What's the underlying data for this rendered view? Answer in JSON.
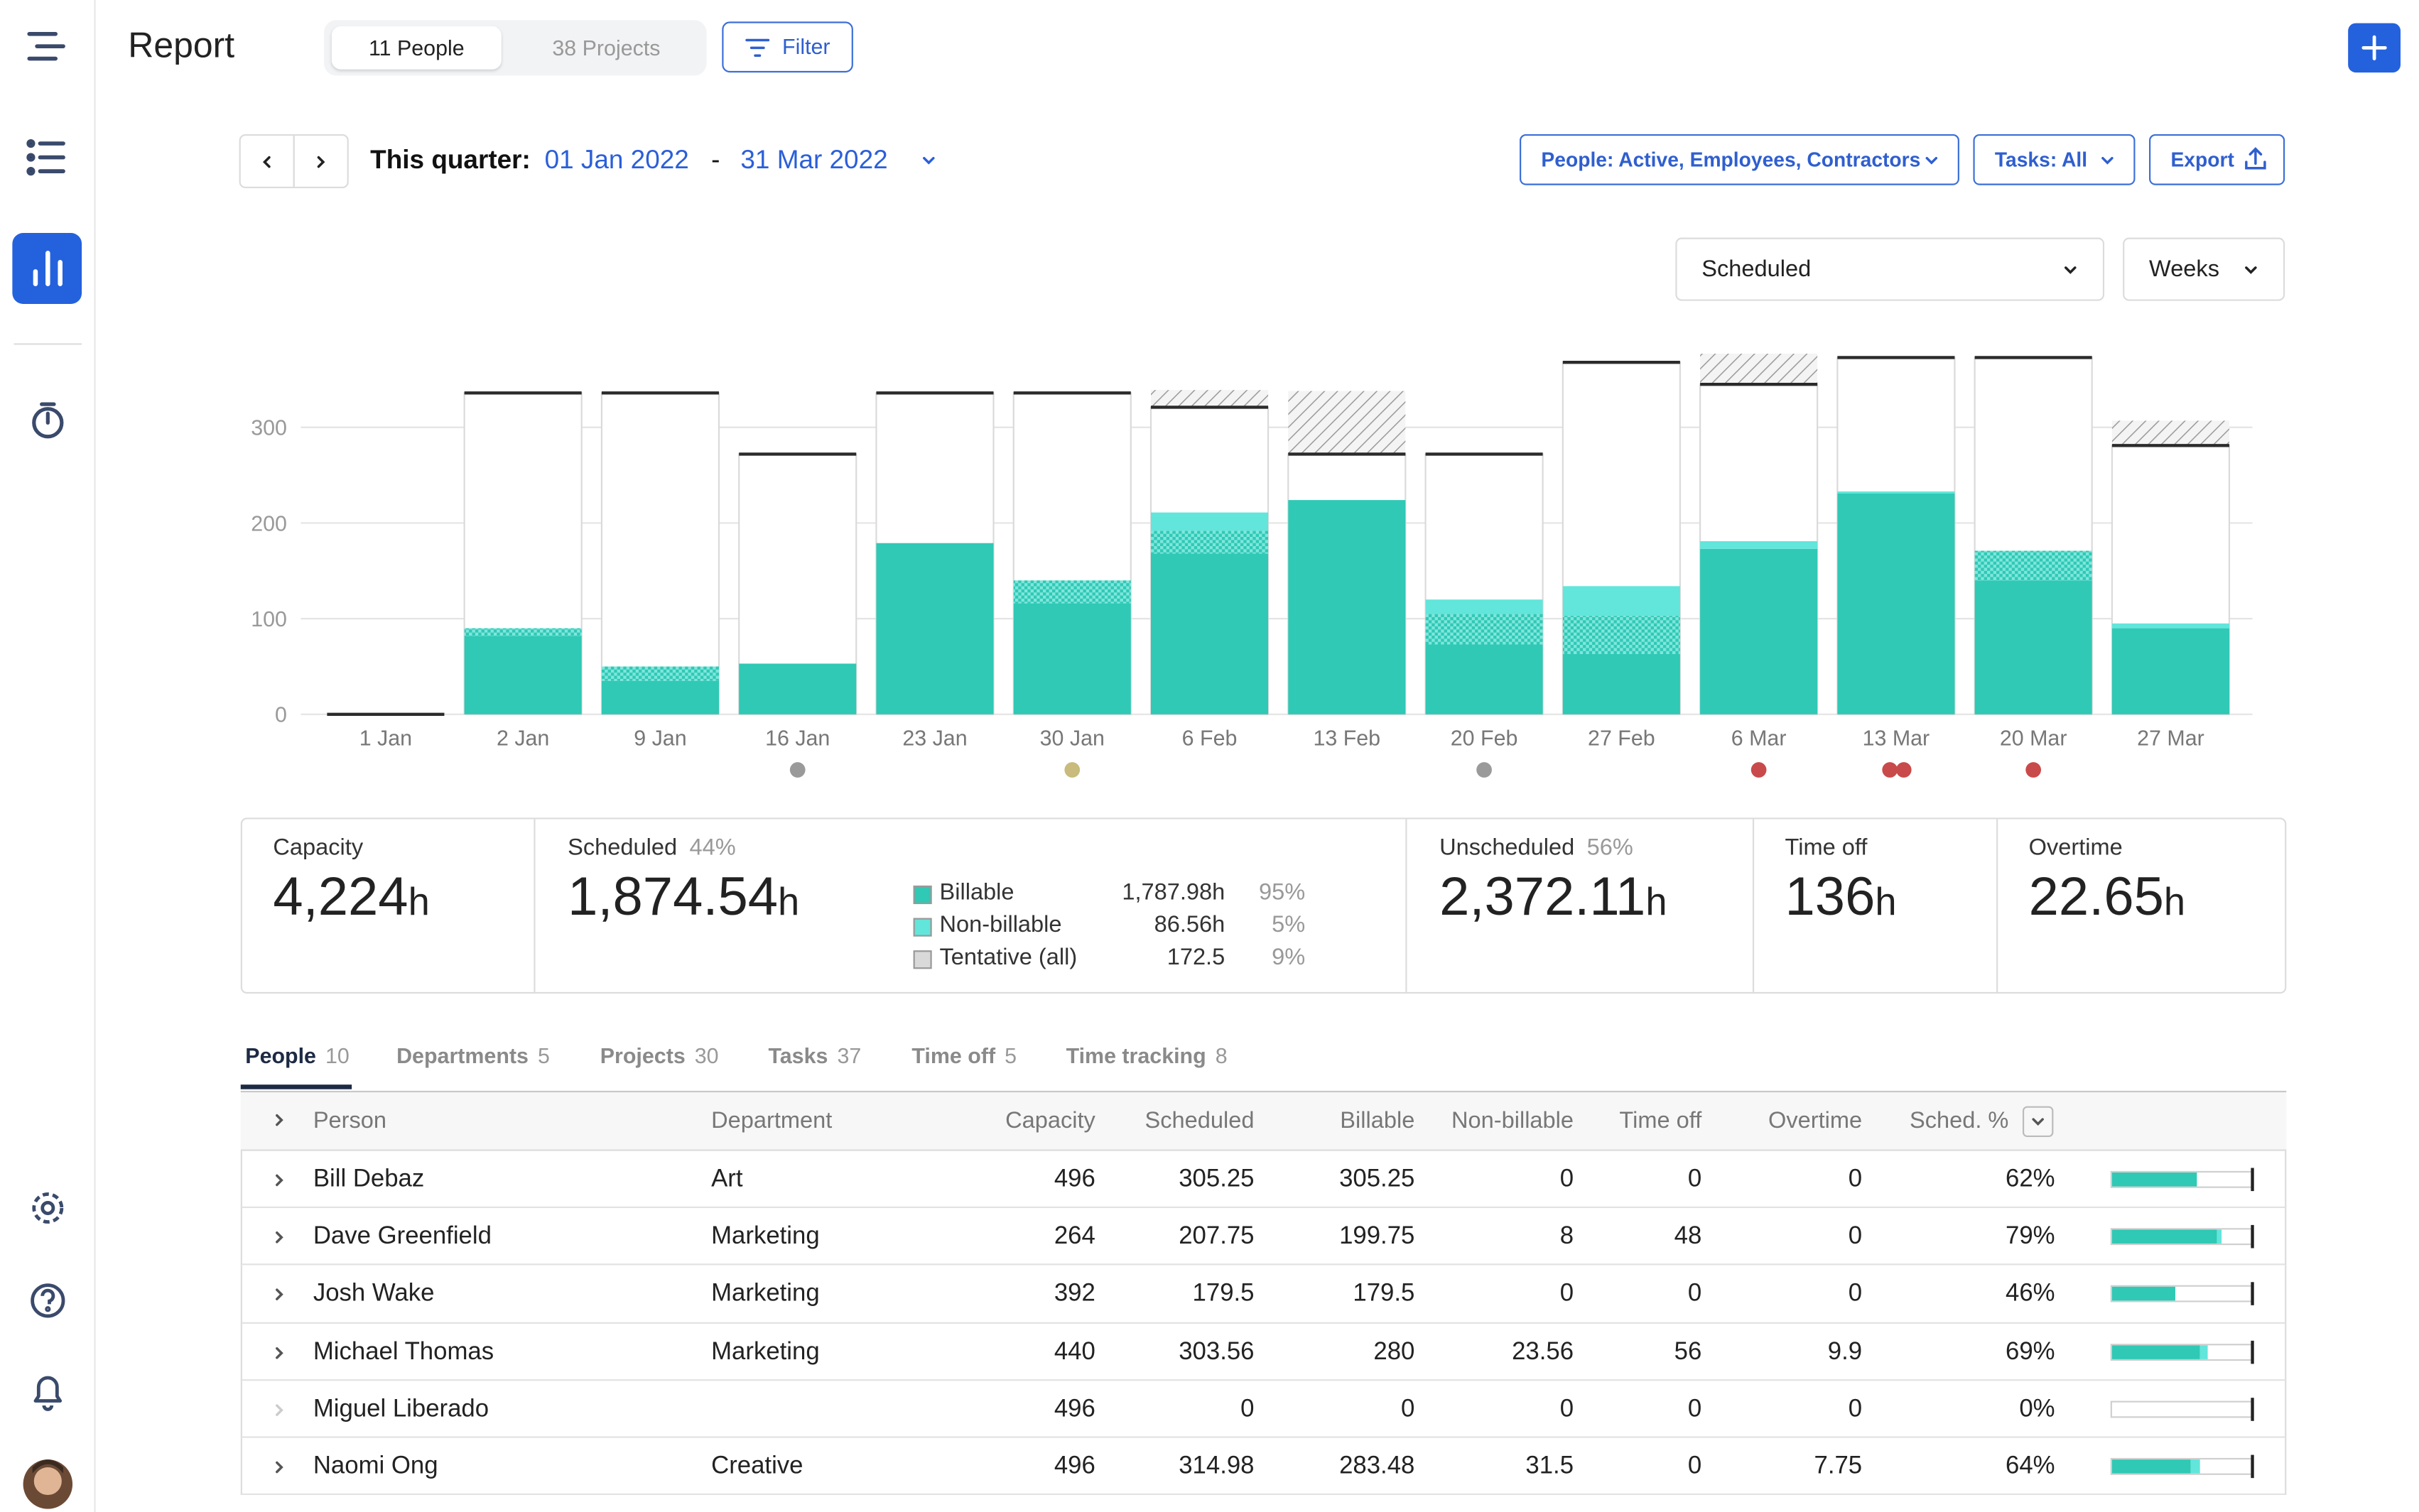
{
  "header": {
    "title": "Report",
    "toggle": [
      "11 People",
      "38 Projects"
    ],
    "filter": "Filter"
  },
  "range": {
    "label": "This quarter:",
    "start": "01 Jan 2022",
    "separator": "-",
    "end": "31 Mar 2022"
  },
  "filters": [
    "People: Active, Employees, Contractors",
    "Tasks: All",
    "Export"
  ],
  "view": {
    "metric": "Scheduled",
    "period": "Weeks"
  },
  "chart_data": {
    "type": "bar",
    "stacked": true,
    "categories": [
      "1 Jan",
      "2 Jan",
      "9 Jan",
      "16 Jan",
      "23 Jan",
      "30 Jan",
      "6 Feb",
      "13 Feb",
      "20 Feb",
      "27 Feb",
      "6 Mar",
      "13 Mar",
      "20 Mar",
      "27 Mar"
    ],
    "series": [
      {
        "name": "Billable",
        "color": "#2fc9b5",
        "values": [
          0,
          82,
          35,
          53,
          179,
          116,
          168,
          224,
          73,
          63,
          173,
          231,
          140,
          90
        ]
      },
      {
        "name": "Non-billable",
        "color": "#62e5db",
        "values": [
          0,
          0,
          0,
          0,
          0,
          0,
          19,
          0,
          15,
          31,
          8,
          2,
          0,
          5
        ]
      },
      {
        "name": "Tentative (all)",
        "color": "#d9d9d9",
        "values": [
          0,
          8,
          15,
          0,
          0,
          24,
          24,
          0,
          32,
          40,
          0,
          0,
          31,
          0
        ]
      }
    ],
    "capacity": [
      0,
      336,
      336,
      272,
      336,
      336,
      321,
      272,
      272,
      368,
      345,
      373,
      373,
      281
    ],
    "overtime": [
      0,
      0,
      0,
      0,
      0,
      0,
      18,
      66,
      0,
      0,
      32,
      0,
      0,
      26
    ],
    "ylim": [
      0,
      390
    ],
    "yticks": [
      0,
      100,
      200,
      300
    ],
    "grid": true
  },
  "summary": [
    {
      "label": "Capacity",
      "value": "4,224",
      "unit": "h"
    },
    {
      "label": "Scheduled",
      "percent": "44%",
      "value": "1,874.54",
      "unit": "h",
      "breakdown": [
        {
          "hours": "1,787.98h",
          "percent": "95%"
        },
        {
          "hours": "86.56h",
          "percent": "5%"
        },
        {
          "hours": "172.5",
          "percent": "9%"
        }
      ]
    },
    {
      "label": "Unscheduled",
      "percent": "56%",
      "value": "2,372.11",
      "unit": "h"
    },
    {
      "label": "Time off",
      "value": "136",
      "unit": "h"
    },
    {
      "label": "Overtime",
      "value": "22.65",
      "unit": "h"
    }
  ],
  "tabs": [
    {
      "label": "People",
      "count": 10
    },
    {
      "label": "Departments",
      "count": 5
    },
    {
      "label": "Projects",
      "count": 30
    },
    {
      "label": "Tasks",
      "count": 37
    },
    {
      "label": "Time off",
      "count": 5
    },
    {
      "label": "Time tracking",
      "count": 8
    }
  ],
  "table": {
    "columns": [
      "Person",
      "Department",
      "Capacity",
      "Scheduled",
      "Billable",
      "Non-billable",
      "Time off",
      "Overtime",
      "Sched. %"
    ],
    "rows": [
      [
        "Bill Debaz",
        "Art",
        496,
        305.25,
        305.25,
        0,
        0,
        0,
        "62%"
      ],
      [
        "Dave Greenfield",
        "Marketing",
        264,
        207.75,
        199.75,
        8,
        48,
        0,
        "79%"
      ],
      [
        "Josh Wake",
        "Marketing",
        392,
        179.5,
        179.5,
        0,
        0,
        0,
        "46%"
      ],
      [
        "Michael Thomas",
        "Marketing",
        440,
        303.56,
        280,
        23.56,
        56,
        9.9,
        "69%"
      ],
      [
        "Miguel Liberado",
        null,
        496,
        0,
        0,
        0,
        0,
        0,
        "0%"
      ],
      [
        "Naomi Ong",
        "Creative",
        496,
        314.98,
        283.48,
        31.5,
        0,
        7.75,
        "64%"
      ]
    ]
  }
}
